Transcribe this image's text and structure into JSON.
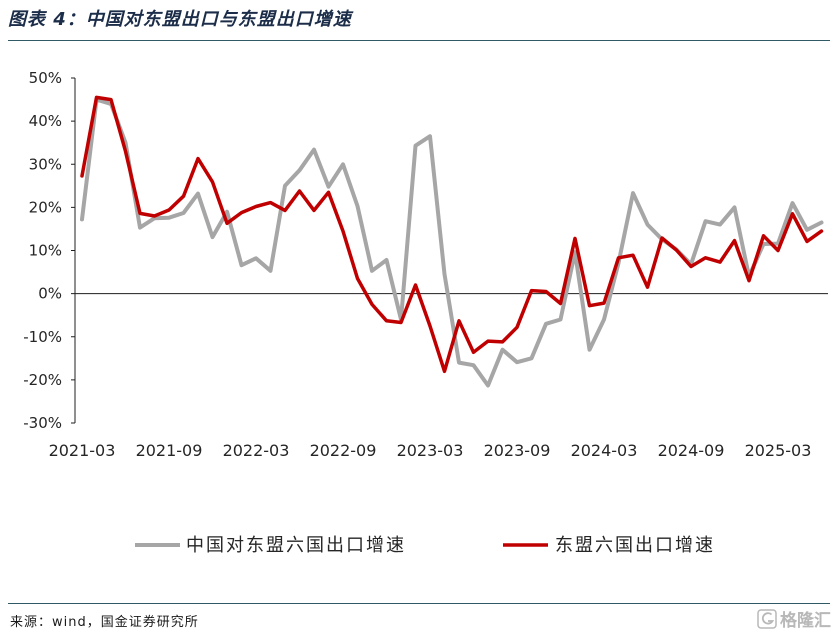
{
  "chart_data": {
    "type": "line",
    "title": "图表 4：中国对东盟出口与东盟出口增速",
    "x": [
      "2021-03",
      "2021-04",
      "2021-05",
      "2021-06",
      "2021-07",
      "2021-08",
      "2021-09",
      "2021-10",
      "2021-11",
      "2021-12",
      "2022-01",
      "2022-02",
      "2022-03",
      "2022-04",
      "2022-05",
      "2022-06",
      "2022-07",
      "2022-08",
      "2022-09",
      "2022-10",
      "2022-11",
      "2022-12",
      "2023-01",
      "2023-02",
      "2023-03",
      "2023-04",
      "2023-05",
      "2023-06",
      "2023-07",
      "2023-08",
      "2023-09",
      "2023-10",
      "2023-11",
      "2023-12",
      "2024-01",
      "2024-02",
      "2024-03",
      "2024-04",
      "2024-05",
      "2024-06",
      "2024-07",
      "2024-08",
      "2024-09",
      "2024-10",
      "2024-11",
      "2024-12",
      "2025-01",
      "2025-02",
      "2025-03",
      "2025-04",
      "2025-05",
      "2025-06"
    ],
    "x_tick_labels": [
      "2021-03",
      "2021-09",
      "2022-03",
      "2022-09",
      "2023-03",
      "2023-09",
      "2024-03",
      "2024-09",
      "2025-03"
    ],
    "y_tick_labels": [
      "50%",
      "40%",
      "30%",
      "20%",
      "10%",
      "0%",
      "-10%",
      "-20%",
      "-30%"
    ],
    "ylim": [
      -30,
      50
    ],
    "grid": false,
    "legend": "bottom",
    "series": [
      {
        "name": "中国对东盟六国出口增速",
        "color": "#a6a6a6",
        "values": [
          17.2,
          45.0,
          44.0,
          35.0,
          15.3,
          17.5,
          17.6,
          18.7,
          23.2,
          13.1,
          19.0,
          6.6,
          8.2,
          5.3,
          25.0,
          28.6,
          33.4,
          24.8,
          30.0,
          20.3,
          5.3,
          7.8,
          -6.0,
          34.3,
          36.5,
          4.5,
          -16.0,
          -16.6,
          -21.3,
          -13.0,
          -15.9,
          -15.0,
          -7.0,
          -6.0,
          9.6,
          -13.0,
          -6.0,
          7.1,
          23.3,
          16.0,
          12.6,
          10.2,
          6.8,
          16.8,
          16.0,
          20.0,
          4.0,
          11.5,
          11.6,
          21.0,
          14.8,
          16.5
        ]
      },
      {
        "name": "东盟六国出口增速",
        "color": "#c00000",
        "values": [
          27.3,
          45.5,
          45.0,
          33.0,
          18.6,
          18.0,
          19.4,
          22.6,
          31.3,
          25.9,
          16.3,
          18.8,
          20.2,
          21.1,
          19.3,
          23.8,
          19.3,
          23.5,
          14.5,
          3.5,
          -2.5,
          -6.3,
          -6.7,
          2.0,
          -7.5,
          -18.0,
          -6.3,
          -13.6,
          -11.0,
          -11.2,
          -7.8,
          0.7,
          0.5,
          -2.3,
          12.8,
          -2.8,
          -2.2,
          8.3,
          8.9,
          1.5,
          12.9,
          10.1,
          6.3,
          8.3,
          7.3,
          12.3,
          3.0,
          13.4,
          10.0,
          18.5,
          12.1,
          14.5
        ]
      }
    ]
  },
  "source": {
    "text": "来源：wind，国金证券研究所"
  },
  "watermark": {
    "text": "格隆汇",
    "icon": "gelonghui-logo-icon"
  },
  "colors": {
    "title": "#1c2d49",
    "rule": "#2f5a66",
    "axis": "#1f1f1f"
  }
}
